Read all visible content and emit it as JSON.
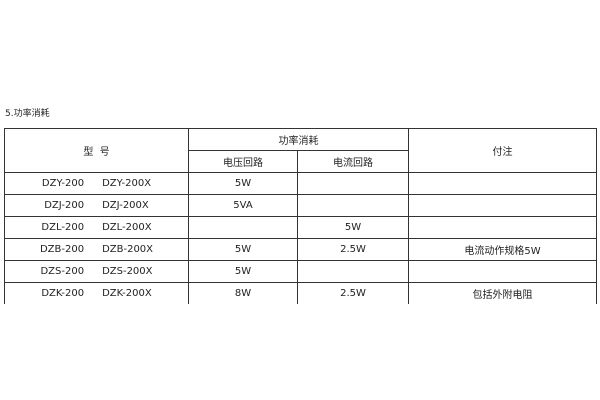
{
  "title": "5.功率消耗",
  "table": {
    "headers": {
      "model": "型  号",
      "power": "功率消耗",
      "voltage_circuit": "电压回路",
      "current_circuit": "电流回路",
      "note": "付注"
    },
    "rows": [
      {
        "model_a": "DZY-200",
        "model_b": "DZY-200X",
        "voltage": "5W",
        "current": "",
        "note": ""
      },
      {
        "model_a": "DZJ-200",
        "model_b": "DZJ-200X",
        "voltage": "5VA",
        "current": "",
        "note": ""
      },
      {
        "model_a": "DZL-200",
        "model_b": "DZL-200X",
        "voltage": "",
        "current": "5W",
        "note": ""
      },
      {
        "model_a": "DZB-200",
        "model_b": "DZB-200X",
        "voltage": "5W",
        "current": "2.5W",
        "note": "电流动作规格5W"
      },
      {
        "model_a": "DZS-200",
        "model_b": "DZS-200X",
        "voltage": "5W",
        "current": "",
        "note": ""
      },
      {
        "model_a": "DZK-200",
        "model_b": "DZK-200X",
        "voltage": "8W",
        "current": "2.5W",
        "note": "包括外附电阻"
      }
    ]
  }
}
